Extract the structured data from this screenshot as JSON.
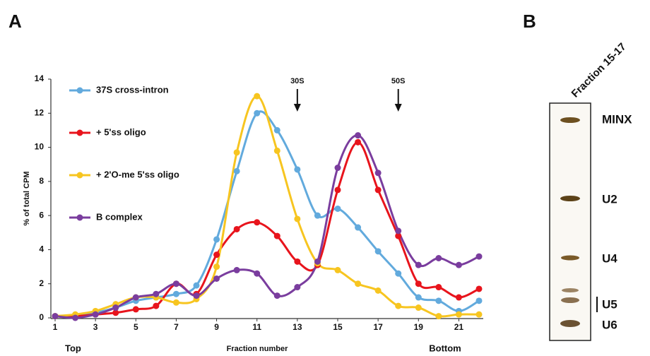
{
  "chart_data": {
    "type": "line",
    "panel_label": "A",
    "y_label": "% of total CPM",
    "x_label": "Fraction number",
    "x_label_left": "Top",
    "x_label_right": "Bottom",
    "x": [
      1,
      2,
      3,
      4,
      5,
      6,
      7,
      8,
      9,
      10,
      11,
      12,
      13,
      14,
      15,
      16,
      17,
      18,
      19,
      20,
      21,
      22
    ],
    "series": [
      {
        "name": "37S cross-intron",
        "color": "#62aadd",
        "values": [
          0.1,
          0.1,
          0.3,
          0.6,
          1.0,
          1.2,
          1.4,
          1.9,
          4.6,
          8.6,
          12.0,
          11.0,
          8.7,
          6.0,
          6.4,
          5.3,
          3.9,
          2.6,
          1.2,
          1.0,
          0.4,
          1.0
        ]
      },
      {
        "name": "+ 5'ss oligo",
        "color": "#e8141c",
        "values": [
          0.1,
          0.1,
          0.2,
          0.3,
          0.5,
          0.7,
          2.0,
          1.4,
          3.7,
          5.2,
          5.6,
          4.8,
          3.3,
          3.1,
          7.5,
          10.3,
          7.5,
          4.8,
          2.0,
          1.8,
          1.2,
          1.7
        ]
      },
      {
        "name": "+ 2'O-me 5'ss oligo",
        "color": "#f7c520",
        "values": [
          0.1,
          0.2,
          0.4,
          0.8,
          1.2,
          1.2,
          0.9,
          1.1,
          3.0,
          9.7,
          13.0,
          9.8,
          5.8,
          3.2,
          2.8,
          2.0,
          1.6,
          0.7,
          0.6,
          0.1,
          0.2,
          0.2
        ]
      },
      {
        "name": "B complex",
        "color": "#7a3d9e",
        "values": [
          0.1,
          0.0,
          0.2,
          0.6,
          1.2,
          1.4,
          2.0,
          1.3,
          2.3,
          2.8,
          2.6,
          1.3,
          1.8,
          3.3,
          8.8,
          10.7,
          8.5,
          5.1,
          3.1,
          3.5,
          3.1,
          3.6
        ]
      }
    ],
    "xlim": [
      1,
      22
    ],
    "xticks": [
      1,
      3,
      5,
      7,
      9,
      11,
      13,
      15,
      17,
      19,
      21
    ],
    "ylim": [
      0,
      14
    ],
    "yticks": [
      0,
      2,
      4,
      6,
      8,
      10,
      12,
      14
    ],
    "legend": "upper left",
    "annotations": [
      {
        "text": "30S",
        "x": 13
      },
      {
        "text": "50S",
        "x": 18
      }
    ]
  },
  "panel_b": {
    "label": "B",
    "column": "Fraction 15-17",
    "bands": [
      "MINX",
      "U2",
      "U4",
      "U5",
      "U6"
    ]
  }
}
